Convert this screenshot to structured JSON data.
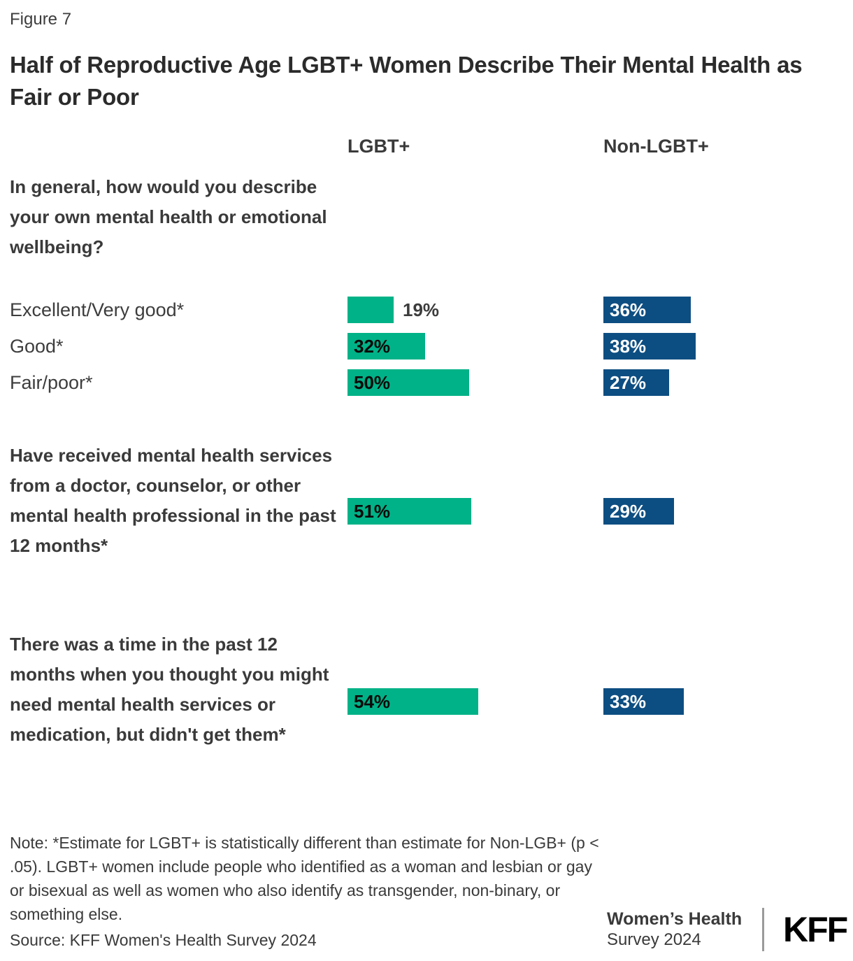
{
  "figure_label": "Figure 7",
  "title": "Half of Reproductive Age LGBT+ Women Describe Their Mental Health as Fair or Poor",
  "columns": {
    "lgbt": "LGBT+",
    "non_lgbt": "Non-LGBT+"
  },
  "colors": {
    "lgbt_bar": "#00B287",
    "non_lgbt_bar": "#0D4E82"
  },
  "chart_data": {
    "type": "bar",
    "orientation": "horizontal",
    "unit": "percent",
    "series": [
      "LGBT+",
      "Non-LGBT+"
    ],
    "xlim": [
      0,
      100
    ],
    "grid": false,
    "legend_position": "column-headers-top",
    "groups": [
      {
        "question": "In general, how would you describe your own mental health or emotional wellbeing?",
        "rows": [
          {
            "label": "Excellent/Very good*",
            "lgbt_value": 19,
            "lgbt_label": "19%",
            "non_lgbt_value": 36,
            "non_lgbt_label": "36%"
          },
          {
            "label": "Good*",
            "lgbt_value": 32,
            "lgbt_label": "32%",
            "non_lgbt_value": 38,
            "non_lgbt_label": "38%"
          },
          {
            "label": "Fair/poor*",
            "lgbt_value": 50,
            "lgbt_label": "50%",
            "non_lgbt_value": 27,
            "non_lgbt_label": "27%"
          }
        ]
      },
      {
        "question": "Have received mental health services from a doctor, counselor, or other mental health professional in the past 12 months*",
        "lgbt_value": 51,
        "lgbt_label": "51%",
        "non_lgbt_value": 29,
        "non_lgbt_label": "29%"
      },
      {
        "question": "There was a time in the past 12 months when you thought you might need mental health services or medication, but didn't get them*",
        "lgbt_value": 54,
        "lgbt_label": "54%",
        "non_lgbt_value": 33,
        "non_lgbt_label": "33%"
      }
    ]
  },
  "note": "Note: *Estimate for LGBT+ is statistically different than estimate for Non-LGB+ (p < .05). LGBT+ women include people who identified as a woman and lesbian or gay or bisexual as well as women who also identify as transgender, non-binary, or something else.",
  "source": "Source: KFF Women's Health Survey 2024",
  "branding": {
    "program_line1": "Women’s Health",
    "program_line2": "Survey 2024",
    "logo": "KFF"
  }
}
